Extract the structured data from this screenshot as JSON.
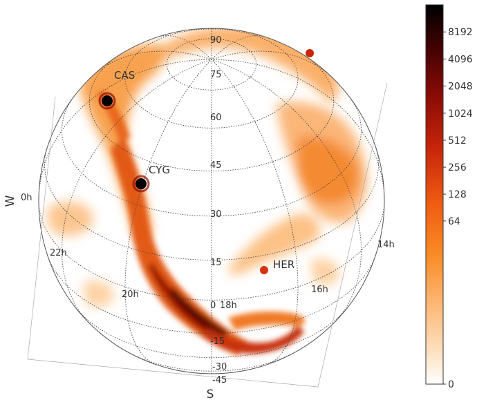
{
  "chart_data": {
    "type": "heatmap",
    "projection": "orthographic-sphere",
    "grid": true,
    "compass": {
      "west": "W",
      "south": "S"
    },
    "declination_ticks": [
      "90",
      "75",
      "60",
      "45",
      "30",
      "15",
      "0",
      "-15",
      "-30",
      "-45"
    ],
    "right_ascension_ticks": [
      "0h",
      "22h",
      "20h",
      "18h",
      "16h",
      "14h"
    ],
    "sources": [
      {
        "name": "CAS"
      },
      {
        "name": "CYG"
      },
      {
        "name": "HER"
      }
    ],
    "colorbar": {
      "scale": "log",
      "ticks": [
        "8192",
        "4096",
        "2048",
        "1024",
        "512",
        "256",
        "128",
        "64",
        "0"
      ],
      "range": [
        0,
        16384
      ],
      "colors": [
        "#ffffff",
        "#fde3c4",
        "#fdb470",
        "#fa8c26",
        "#ef5a12",
        "#c8260a",
        "#8b0b05",
        "#3a0202",
        "#000000"
      ]
    }
  }
}
